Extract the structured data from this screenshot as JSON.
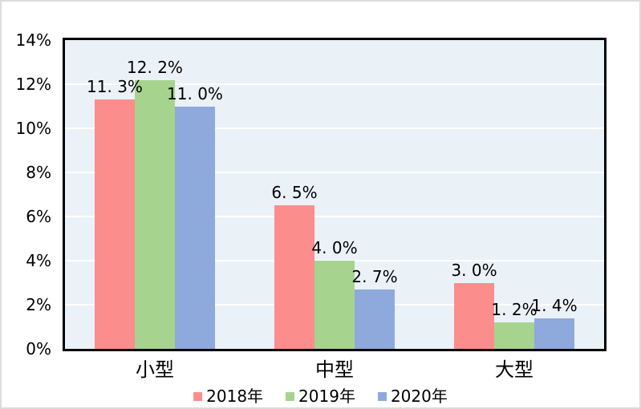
{
  "chart_data": {
    "type": "bar",
    "title": "",
    "xlabel": "",
    "ylabel": "",
    "categories": [
      "小型",
      "中型",
      "大型"
    ],
    "series": [
      {
        "name": "2018年",
        "color": "#FC8D8D",
        "values": [
          11.3,
          6.5,
          3.0
        ],
        "labels": [
          "11. 3%",
          "6. 5%",
          "3. 0%"
        ]
      },
      {
        "name": "2019年",
        "color": "#A6D48E",
        "values": [
          12.2,
          4.0,
          1.2
        ],
        "labels": [
          "12. 2%",
          "4. 0%",
          "1. 2%"
        ]
      },
      {
        "name": "2020年",
        "color": "#8EA9DC",
        "values": [
          11.0,
          2.7,
          1.4
        ],
        "labels": [
          "11. 0%",
          "2. 7%",
          "1. 4%"
        ]
      }
    ],
    "ylim": [
      0,
      14
    ],
    "ytick_step": 2,
    "ytick_labels": [
      "0%",
      "2%",
      "4%",
      "6%",
      "8%",
      "10%",
      "12%",
      "14%"
    ],
    "grid": true,
    "legend_position": "bottom"
  },
  "style": {
    "plot_bg": "#EAF2F8",
    "grid_color": "#FFFFFF",
    "plot_border": "#000000",
    "outer_border": "#DCDCDC",
    "text_color": "#000000"
  }
}
